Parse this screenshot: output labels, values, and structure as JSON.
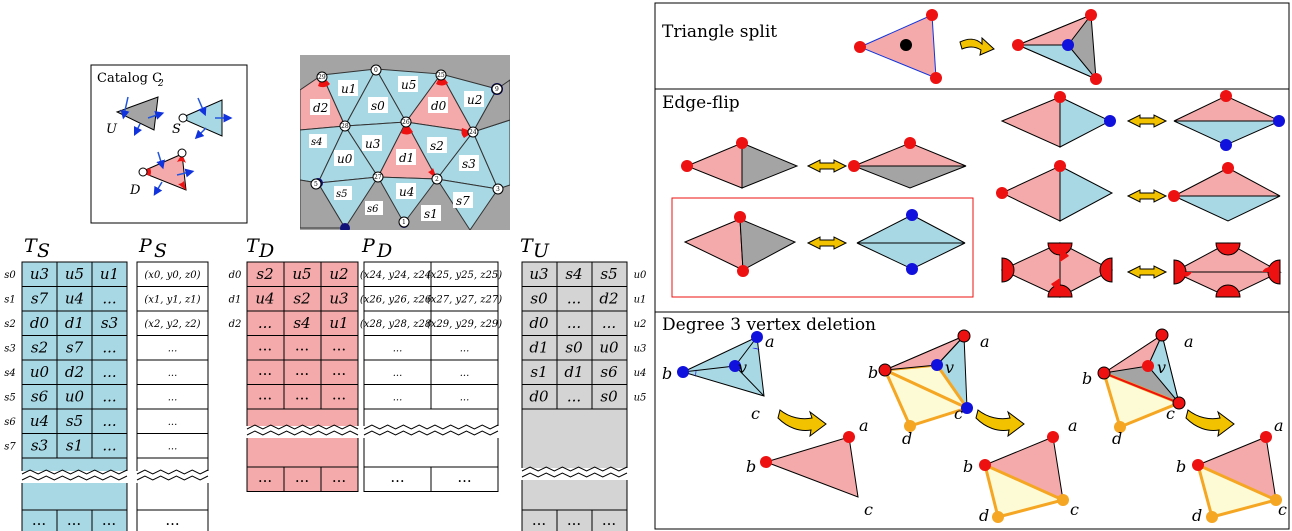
{
  "catalog": {
    "title": "Catalog C",
    "subscript": "2",
    "labels": [
      "U",
      "S",
      "D"
    ]
  },
  "mesh": {
    "triangle_labels": [
      "u1",
      "s0",
      "u5",
      "d0",
      "u2",
      "d2",
      "s4",
      "u0",
      "u3",
      "d1",
      "s2",
      "s3",
      "s5",
      "s6",
      "u4",
      "s1",
      "s7"
    ],
    "vertex_labels": [
      "29",
      "0",
      "25",
      "9",
      "28",
      "26",
      "24",
      "27",
      "2",
      "5",
      "1",
      "3"
    ]
  },
  "tables": {
    "TS": {
      "head": "T",
      "sub": "S",
      "row_labels": [
        "s0",
        "s1",
        "s2",
        "s3",
        "s4",
        "s5",
        "s6",
        "s7"
      ],
      "rows": [
        [
          "u3",
          "u5",
          "u1"
        ],
        [
          "s7",
          "u4",
          "..."
        ],
        [
          "d0",
          "d1",
          "s3"
        ],
        [
          "s2",
          "s7",
          "..."
        ],
        [
          "u0",
          "d2",
          "..."
        ],
        [
          "s6",
          "u0",
          "..."
        ],
        [
          "u4",
          "s5",
          "..."
        ],
        [
          "s3",
          "s1",
          "..."
        ]
      ],
      "tail": [
        "...",
        "...",
        "..."
      ]
    },
    "PS": {
      "head": "P",
      "sub": "S",
      "rows": [
        "(x0, y0, z0)",
        "(x1, y1, z1)",
        "(x2, y2, z2)",
        "...",
        "...",
        "...",
        "...",
        "..."
      ],
      "tail": "..."
    },
    "TD": {
      "head": "T",
      "sub": "D",
      "row_labels": [
        "d0",
        "d1",
        "d2"
      ],
      "rows": [
        [
          "s2",
          "u5",
          "u2"
        ],
        [
          "u4",
          "s2",
          "u3"
        ],
        [
          "...",
          "s4",
          "u1"
        ]
      ],
      "extra": [
        [
          "...",
          "...",
          "..."
        ],
        [
          "...",
          "...",
          "..."
        ],
        [
          "...",
          "...",
          "..."
        ]
      ],
      "tail": [
        "...",
        "...",
        "..."
      ]
    },
    "PD": {
      "head": "P",
      "sub": "D",
      "rows": [
        [
          "(x24, y24, z24)",
          "(x25, y25, z25)"
        ],
        [
          "(x26, y26, z26)",
          "(x27, y27, z27)"
        ],
        [
          "(x28, y28, z28)",
          "(x29, y29, z29)"
        ],
        [
          "...",
          "..."
        ],
        [
          "...",
          "..."
        ],
        [
          "...",
          "..."
        ]
      ],
      "tail": [
        "...",
        "..."
      ]
    },
    "TU": {
      "head": "T",
      "sub": "U",
      "row_labels": [
        "u0",
        "u1",
        "u2",
        "u3",
        "u4",
        "u5"
      ],
      "rows": [
        [
          "u3",
          "s4",
          "s5"
        ],
        [
          "s0",
          "...",
          "d2"
        ],
        [
          "d0",
          "...",
          "..."
        ],
        [
          "d1",
          "s0",
          "u0"
        ],
        [
          "s1",
          "d1",
          "s6"
        ],
        [
          "d0",
          "...",
          "s0"
        ]
      ],
      "tail": [
        "...",
        "...",
        "..."
      ]
    }
  },
  "panels": {
    "split": {
      "title": "Triangle split"
    },
    "flip": {
      "title": "Edge-flip"
    },
    "deletion": {
      "title": "Degree 3 vertex deletion",
      "labels": [
        "a",
        "b",
        "c",
        "v",
        "d"
      ]
    }
  },
  "colors": {
    "pink": "#f4aaaa",
    "blue": "#a9d8e5",
    "gray": "#a4a4a4",
    "red": "#ee1111",
    "dotblue": "#1111dd",
    "orange": "#f5a623",
    "cream": "#fdfbd6",
    "rowgray": "#d4d4d4",
    "arrow": "#f2c200"
  }
}
